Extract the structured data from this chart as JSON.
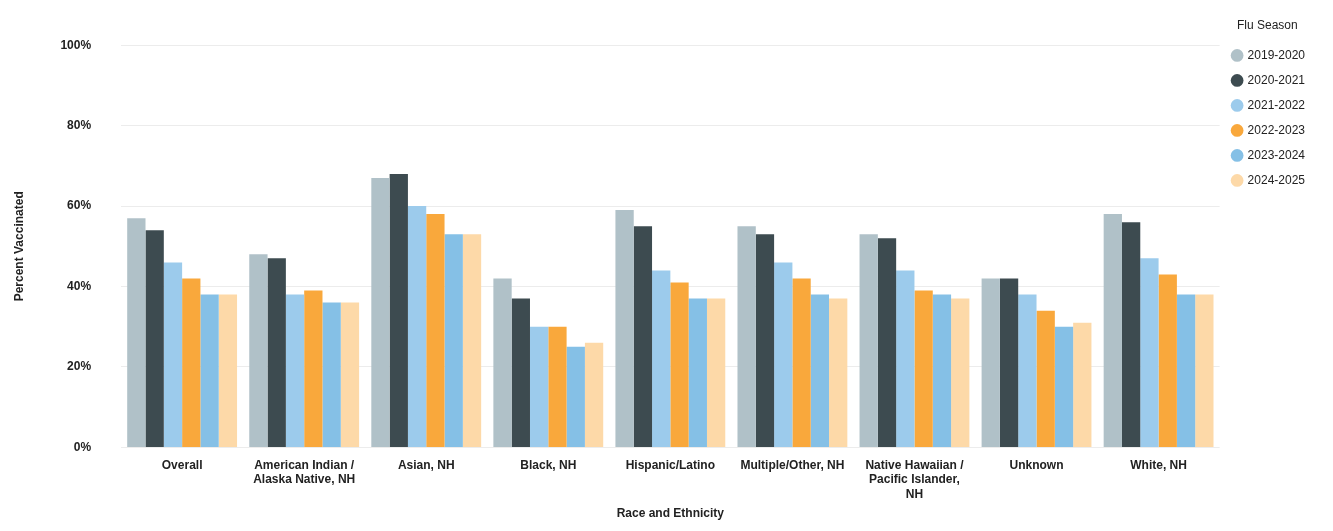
{
  "chart_data": {
    "type": "bar",
    "xlabel": "Race and Ethnicity",
    "ylabel": "Percent Vaccinated",
    "legend_title": "Flu Season",
    "categories": [
      "Overall",
      "American Indian / Alaska Native, NH",
      "Asian, NH",
      "Black, NH",
      "Hispanic/Latino",
      "Multiple/Other, NH",
      "Native Hawaiian / Pacific Islander, NH",
      "Unknown",
      "White, NH"
    ],
    "series": [
      {
        "name": "2019-2020",
        "color": "#b0c1c8",
        "values": [
          57,
          48,
          67,
          42,
          59,
          55,
          53,
          42,
          58
        ]
      },
      {
        "name": "2020-2021",
        "color": "#3d4b50",
        "values": [
          54,
          47,
          68,
          37,
          55,
          53,
          52,
          42,
          56
        ]
      },
      {
        "name": "2021-2022",
        "color": "#9ccbec",
        "values": [
          46,
          38,
          60,
          30,
          44,
          46,
          44,
          38,
          47
        ]
      },
      {
        "name": "2022-2023",
        "color": "#f9a83c",
        "values": [
          42,
          39,
          58,
          30,
          41,
          42,
          39,
          34,
          43
        ]
      },
      {
        "name": "2023-2024",
        "color": "#85c0e6",
        "values": [
          38,
          36,
          53,
          25,
          37,
          38,
          38,
          30,
          38
        ]
      },
      {
        "name": "2024-2025",
        "color": "#fdd9a8",
        "values": [
          38,
          36,
          53,
          26,
          37,
          37,
          37,
          31,
          38
        ]
      }
    ],
    "ylim": [
      0,
      100
    ],
    "yticks": [
      {
        "value": 0,
        "label": "0%"
      },
      {
        "value": 20,
        "label": "20%"
      },
      {
        "value": 40,
        "label": "40%"
      },
      {
        "value": 60,
        "label": "60%"
      },
      {
        "value": 80,
        "label": "80%"
      },
      {
        "value": 100,
        "label": "100%"
      }
    ],
    "grid": "y",
    "legend": "top right"
  }
}
